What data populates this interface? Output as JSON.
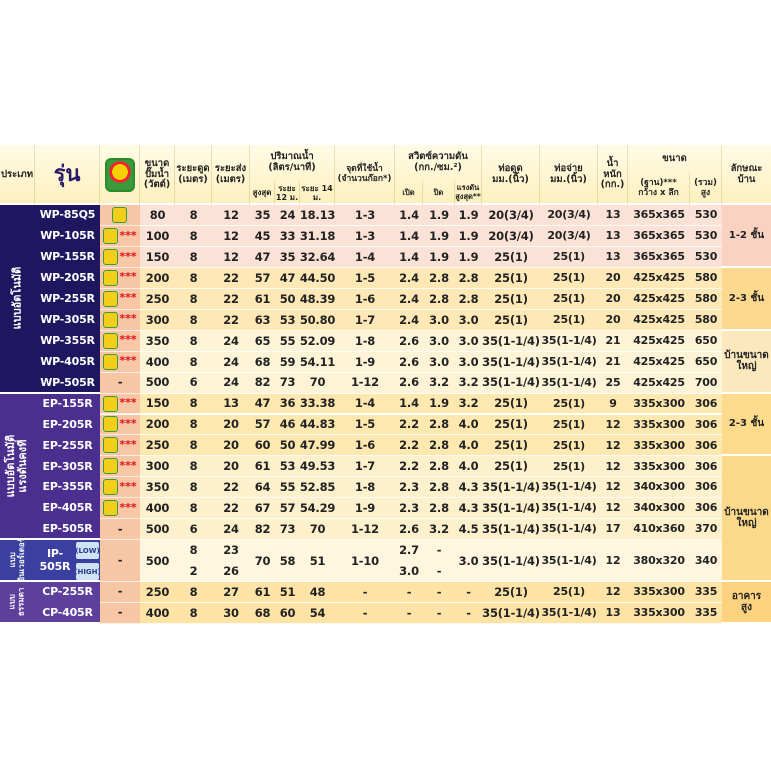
{
  "header": {
    "type": "ประเภท",
    "model": "รุ่น",
    "power": [
      "ขนาด",
      "ปั๊มน้ำ",
      "(วัตต์)"
    ],
    "suction": [
      "ระยะดูด",
      "(เมตร)"
    ],
    "discharge": [
      "ระยะส่ง",
      "(เมตร)"
    ],
    "flow": {
      "title": [
        "ปริมาณน้ำ",
        "(ลิตร/นาที)"
      ],
      "sub": [
        "สูงสุด",
        "ระยะ 12 ม.",
        "ระยะ 14 ม."
      ]
    },
    "taps": [
      "จุดที่ใช้น้ำ",
      "(จำนวนก๊อก*)"
    ],
    "switch": {
      "title": [
        "สวิตซ์ความดัน",
        "(กก./ซม.²)"
      ],
      "sub": [
        "เปิด",
        "ปิด",
        [
          "แรงดัน",
          "สูงสุด**"
        ]
      ]
    },
    "pipe_in": [
      "ท่อดูด",
      "มม.(นิ้ว)"
    ],
    "pipe_out": [
      "ท่อจ่าย",
      "มม.(นิ้ว)"
    ],
    "weight": [
      "น้ำหนัก",
      "(กก.)"
    ],
    "size": {
      "title": "ขนาด",
      "sub": [
        [
          "(ฐาน)***",
          "กว้าง x ลึก"
        ],
        [
          "(รวม)",
          "สูง"
        ]
      ]
    },
    "house": [
      "ลักษณะ",
      "บ้าน"
    ]
  },
  "groups": [
    {
      "type": [
        "แบบอัตโนมัติ"
      ],
      "rows": [
        [
          "WP-85Q5",
          null,
          "80",
          "8",
          "12",
          "35",
          "24",
          "18.13",
          "1-3",
          "1.4",
          "1.9",
          "1.9",
          "20(3/4)",
          "20(3/4)",
          "13",
          "365x365",
          "530",
          [
            "1-2 ชั้น"
          ]
        ],
        [
          "WP-105R",
          "***",
          "100",
          "8",
          "12",
          "45",
          "33",
          "31.18",
          "1-3",
          "1.4",
          "1.9",
          "1.9",
          "20(3/4)",
          "20(3/4)",
          "13",
          "365x365",
          "530"
        ],
        [
          "WP-155R",
          "***",
          "150",
          "8",
          "12",
          "47",
          "35",
          "32.64",
          "1-4",
          "1.4",
          "1.9",
          "1.9",
          "25(1)",
          "25(1)",
          "13",
          "365x365",
          "530"
        ],
        [
          "WP-205R",
          "***",
          "200",
          "8",
          "22",
          "57",
          "47",
          "44.50",
          "1-5",
          "2.4",
          "2.8",
          "2.8",
          "25(1)",
          "25(1)",
          "20",
          "425x425",
          "580",
          [
            "2-3 ชั้น"
          ]
        ],
        [
          "WP-255R",
          "***",
          "250",
          "8",
          "22",
          "61",
          "50",
          "48.39",
          "1-6",
          "2.4",
          "2.8",
          "2.8",
          "25(1)",
          "25(1)",
          "20",
          "425x425",
          "580"
        ],
        [
          "WP-305R",
          "***",
          "300",
          "8",
          "22",
          "63",
          "53",
          "50.80",
          "1-7",
          "2.4",
          "3.0",
          "3.0",
          "25(1)",
          "25(1)",
          "20",
          "425x425",
          "580"
        ],
        [
          "WP-355R",
          "***",
          "350",
          "8",
          "24",
          "65",
          "55",
          "52.09",
          "1-8",
          "2.6",
          "3.0",
          "3.0",
          "35(1-1/4)",
          "35(1-1/4)",
          "21",
          "425x425",
          "650",
          [
            "บ้านขนาด",
            "ใหญ่"
          ]
        ],
        [
          "WP-405R",
          "***",
          "400",
          "8",
          "24",
          "68",
          "59",
          "54.11",
          "1-9",
          "2.6",
          "3.0",
          "3.0",
          "35(1-1/4)",
          "35(1-1/4)",
          "21",
          "425x425",
          "650"
        ],
        [
          "WP-505R",
          "-",
          "500",
          "6",
          "24",
          "82",
          "73",
          "70",
          "1-12",
          "2.6",
          "3.2",
          "3.2",
          "35(1-1/4)",
          "35(1-1/4)",
          "25",
          "425x425",
          "700"
        ]
      ]
    },
    {
      "type": [
        "แบบอัตโนมัติ",
        "แรงดันคงที่"
      ],
      "rows": [
        [
          "EP-155R",
          "***",
          "150",
          "8",
          "13",
          "47",
          "36",
          "33.38",
          "1-4",
          "1.4",
          "1.9",
          "3.2",
          "25(1)",
          "25(1)",
          "9",
          "335x300",
          "306",
          [
            "2-3 ชั้น"
          ]
        ],
        [
          "EP-205R",
          "***",
          "200",
          "8",
          "20",
          "57",
          "46",
          "44.83",
          "1-5",
          "2.2",
          "2.8",
          "4.0",
          "25(1)",
          "25(1)",
          "12",
          "335x300",
          "306"
        ],
        [
          "EP-255R",
          "***",
          "250",
          "8",
          "20",
          "60",
          "50",
          "47.99",
          "1-6",
          "2.2",
          "2.8",
          "4.0",
          "25(1)",
          "25(1)",
          "12",
          "335x300",
          "306"
        ],
        [
          "EP-305R",
          "***",
          "300",
          "8",
          "20",
          "61",
          "53",
          "49.53",
          "1-7",
          "2.2",
          "2.8",
          "4.0",
          "25(1)",
          "25(1)",
          "12",
          "335x300",
          "306",
          [
            "บ้านขนาด",
            "ใหญ่"
          ]
        ],
        [
          "EP-355R",
          "***",
          "350",
          "8",
          "22",
          "64",
          "55",
          "52.85",
          "1-8",
          "2.3",
          "2.8",
          "4.3",
          "35(1-1/4)",
          "35(1-1/4)",
          "12",
          "340x300",
          "306"
        ],
        [
          "EP-405R",
          "***",
          "400",
          "8",
          "22",
          "67",
          "57",
          "54.29",
          "1-9",
          "2.3",
          "2.8",
          "4.3",
          "35(1-1/4)",
          "35(1-1/4)",
          "12",
          "340x300",
          "306"
        ],
        [
          "EP-505R",
          "-",
          "500",
          "6",
          "24",
          "82",
          "73",
          "70",
          "1-12",
          "2.6",
          "3.2",
          "4.5",
          "35(1-1/4)",
          "35(1-1/4)",
          "17",
          "410x360",
          "370"
        ]
      ]
    },
    {
      "type": [
        "แบบ",
        "อินเวอร์เตอร์"
      ],
      "modes": [
        "(LOW)",
        "(HIGH)"
      ],
      "rows": [
        [
          "IP-505R",
          "-",
          "500",
          [
            "8",
            "2"
          ],
          [
            "23",
            "26"
          ],
          "70",
          "58",
          "51",
          "1-10",
          [
            "2.7",
            "3.0"
          ],
          [
            "-",
            "-"
          ],
          "3.0",
          "35(1-1/4)",
          "35(1-1/4)",
          "12",
          "380x320",
          "340"
        ]
      ]
    },
    {
      "type": [
        "แบบ",
        "ธรรมดา"
      ],
      "rows": [
        [
          "CP-255R",
          "-",
          "250",
          "8",
          "27",
          "61",
          "51",
          "48",
          "-",
          "-",
          "-",
          "-",
          "25(1)",
          "25(1)",
          "12",
          "335x300",
          "335",
          [
            "อาคาร",
            "สูง"
          ]
        ],
        [
          "CP-405R",
          "-",
          "400",
          "8",
          "30",
          "68",
          "60",
          "54",
          "-",
          "-",
          "-",
          "-",
          "35(1-1/4)",
          "35(1-1/4)",
          "13",
          "335x300",
          "335"
        ]
      ]
    }
  ]
}
